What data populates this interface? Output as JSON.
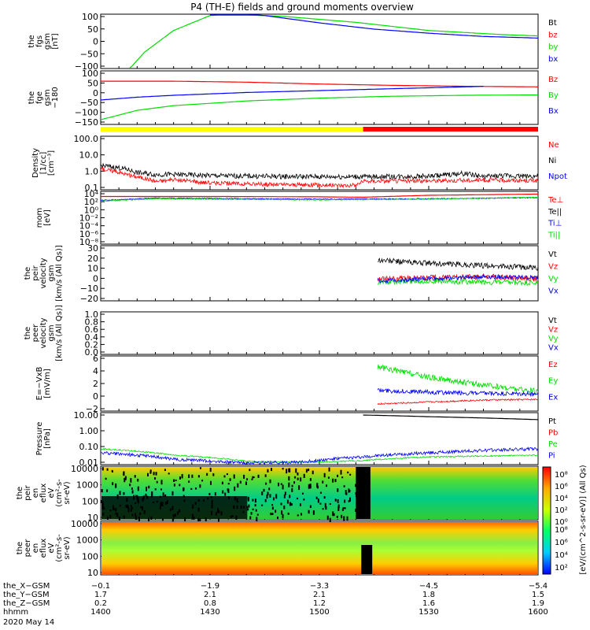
{
  "title": "P4 (TH-E) fields and ground moments overview",
  "colors": {
    "black": "#000000",
    "red": "#ff0000",
    "green": "#00dd00",
    "blue": "#0000ff",
    "yellow": "#ffff00"
  },
  "panels": [
    {
      "id": "fgs",
      "ylabel": [
        "the",
        "fgs",
        "gsm",
        "[nT]"
      ],
      "ticks": [
        "100",
        "50",
        "0",
        "−50",
        "−100"
      ],
      "ylim": [
        -100,
        100
      ],
      "legend": [
        {
          "text": "Bt",
          "color": "#000000"
        },
        {
          "text": "bz",
          "color": "#ff0000"
        },
        {
          "text": "by",
          "color": "#00dd00"
        },
        {
          "text": "bx",
          "color": "#0000ff"
        }
      ]
    },
    {
      "id": "fge",
      "ylabel": [
        "the",
        "fge",
        "gsm",
        "−180"
      ],
      "ticks": [
        "100",
        "50",
        "0",
        "−50",
        "−100",
        "−150"
      ],
      "ylim": [
        -175,
        110
      ],
      "legend": [
        {
          "text": "Bz",
          "color": "#ff0000"
        },
        {
          "text": "By",
          "color": "#00dd00"
        },
        {
          "text": "Bx",
          "color": "#0000ff"
        }
      ]
    },
    {
      "id": "density",
      "ylabel": [
        "Density",
        "[1/cc]",
        "[cm⁻³]"
      ],
      "ticks": [
        "100.0",
        "10.0",
        "1.0",
        "0.1"
      ],
      "ylim": [
        0.05,
        300
      ],
      "log": true,
      "legend": [
        {
          "text": "Ne",
          "color": "#ff0000"
        },
        {
          "text": "Ni",
          "color": "#000000"
        },
        {
          "text": "Npot",
          "color": "#0000ff"
        }
      ]
    },
    {
      "id": "temp",
      "ylabel": [
        "mom",
        "[eV]"
      ],
      "ticks": [
        "10⁴",
        "10²",
        "10⁰",
        "10⁻²",
        "10⁻⁴",
        "10⁻⁶",
        "10⁻⁸"
      ],
      "ylim": [
        -9,
        4.5
      ],
      "legend": [
        {
          "text": "Te⊥",
          "color": "#ff0000"
        },
        {
          "text": "Te||",
          "color": "#000000"
        },
        {
          "text": "Ti⊥",
          "color": "#0000ff"
        },
        {
          "text": "Ti||",
          "color": "#00dd00"
        }
      ]
    },
    {
      "id": "peir_vel",
      "ylabel": [
        "the",
        "peir",
        "velocity",
        "gsm",
        "[km/s (All Qs)]"
      ],
      "ticks": [
        "30",
        "20",
        "10",
        "0",
        "−10",
        "−20"
      ],
      "ylim": [
        -20,
        30
      ],
      "legend": [
        {
          "text": "Vt",
          "color": "#000000"
        },
        {
          "text": "Vz",
          "color": "#ff0000"
        },
        {
          "text": "Vy",
          "color": "#00dd00"
        },
        {
          "text": "Vx",
          "color": "#0000ff"
        }
      ]
    },
    {
      "id": "peer_vel",
      "ylabel": [
        "the",
        "peer",
        "velocity",
        "gsm",
        "[km/s (All Qs)]"
      ],
      "ticks": [
        "1.0",
        "0.8",
        "0.6",
        "0.4",
        "0.2",
        "0.0"
      ],
      "ylim": [
        0,
        1
      ],
      "legend": [
        {
          "text": "Vt",
          "color": "#000000"
        },
        {
          "text": "Vz",
          "color": "#ff0000"
        },
        {
          "text": "Vy",
          "color": "#00dd00"
        },
        {
          "text": "Vx",
          "color": "#0000ff"
        }
      ]
    },
    {
      "id": "efield",
      "ylabel": [
        "E=−VxB",
        "[mV/m]"
      ],
      "ticks": [
        "6",
        "4",
        "2",
        "0",
        "−2"
      ],
      "ylim": [
        -2,
        6.5
      ],
      "legend": [
        {
          "text": "Ez",
          "color": "#ff0000"
        },
        {
          "text": "Ey",
          "color": "#00dd00"
        },
        {
          "text": "Ex",
          "color": "#0000ff"
        }
      ]
    },
    {
      "id": "pressure",
      "ylabel": [
        "Pressure",
        "[nPa]"
      ],
      "ticks": [
        "10.00",
        "1.00",
        "0.10",
        "0.01"
      ],
      "ylim": [
        0.004,
        30
      ],
      "log": true,
      "legend": [
        {
          "text": "Pt",
          "color": "#000000"
        },
        {
          "text": "Pb",
          "color": "#ff0000"
        },
        {
          "text": "Pe",
          "color": "#00dd00"
        },
        {
          "text": "Pi",
          "color": "#0000ff"
        }
      ]
    },
    {
      "id": "peir_spec",
      "ylabel": [
        "the",
        "peir",
        "en",
        "eflux",
        "eV",
        "(cm²-s-",
        "sr-eV)"
      ],
      "ticks": [
        "10000",
        "1000",
        "100",
        "10"
      ]
    },
    {
      "id": "peer_spec",
      "ylabel": [
        "the",
        "peer",
        "en",
        "eflux",
        "eV",
        "(cm²-s-",
        "sr-eV)"
      ],
      "ticks": [
        "10000",
        "1000",
        "100",
        "10"
      ]
    }
  ],
  "colorbar": {
    "label": "[eV/(cm^2-s-sr-eV)] (All Qs)",
    "ticks_top": [
      "10⁸",
      "10⁶",
      "10⁴",
      "10²",
      "10⁰"
    ],
    "ticks_bottom": [
      "10⁸",
      "10⁶",
      "10⁴",
      "10²"
    ]
  },
  "mode_bar": {
    "segments": [
      {
        "from": 0,
        "to": 0.6,
        "color": "#ffff00"
      },
      {
        "from": 0.6,
        "to": 1,
        "color": "#ff0000"
      }
    ]
  },
  "xaxis": {
    "rows": [
      {
        "label": "the_X−GSM",
        "values": [
          "−0.1",
          "−1.9",
          "−3.3",
          "−4.5",
          "−5.4"
        ]
      },
      {
        "label": "the_Y−GSM",
        "values": [
          "1.7",
          "2.1",
          "2.1",
          "1.8",
          "1.5"
        ]
      },
      {
        "label": "the_Z−GSM",
        "values": [
          "0.2",
          "0.8",
          "1.2",
          "1.6",
          "1.9"
        ]
      },
      {
        "label": "hhmm",
        "values": [
          "1400",
          "1430",
          "1500",
          "1530",
          "1600"
        ]
      }
    ],
    "date": "2020 May 14"
  },
  "chart_data": {
    "type": "line",
    "title": "P4 (TH-E) fields and ground moments overview",
    "x_label": "hhmm",
    "x": [
      "1400",
      "1430",
      "1500",
      "1530",
      "1600"
    ],
    "x_minutes": [
      0,
      30,
      60,
      90,
      120
    ],
    "series": [
      {
        "panel": "fgs",
        "name": "by",
        "points": [
          [
            8,
            -100
          ],
          [
            12,
            -40
          ],
          [
            20,
            40
          ],
          [
            30,
            95
          ],
          [
            35,
            100
          ],
          [
            50,
            92
          ],
          [
            70,
            70
          ],
          [
            90,
            40
          ],
          [
            110,
            25
          ],
          [
            120,
            20
          ]
        ]
      },
      {
        "panel": "fgs",
        "name": "bx",
        "points": [
          [
            30,
            110
          ],
          [
            45,
            95
          ],
          [
            60,
            68
          ],
          [
            75,
            45
          ],
          [
            90,
            30
          ],
          [
            105,
            18
          ],
          [
            120,
            12
          ]
        ]
      },
      {
        "panel": "fge",
        "name": "Bz",
        "points": [
          [
            0,
            55
          ],
          [
            20,
            55
          ],
          [
            40,
            50
          ],
          [
            60,
            40
          ],
          [
            80,
            33
          ],
          [
            100,
            28
          ],
          [
            120,
            25
          ]
        ]
      },
      {
        "panel": "fge",
        "name": "By",
        "points": [
          [
            0,
            -150
          ],
          [
            10,
            -100
          ],
          [
            20,
            -75
          ],
          [
            40,
            -50
          ],
          [
            60,
            -35
          ],
          [
            80,
            -25
          ],
          [
            100,
            -20
          ],
          [
            120,
            -18
          ]
        ]
      },
      {
        "panel": "fge",
        "name": "Bx",
        "points": [
          [
            0,
            -45
          ],
          [
            10,
            -30
          ],
          [
            20,
            -20
          ],
          [
            40,
            -5
          ],
          [
            60,
            5
          ],
          [
            80,
            15
          ],
          [
            100,
            25
          ],
          [
            105,
            28
          ]
        ]
      },
      {
        "panel": "density",
        "name": "Ni",
        "points": [
          [
            0,
            2.5
          ],
          [
            5,
            1.8
          ],
          [
            10,
            0.8
          ],
          [
            15,
            0.6
          ],
          [
            20,
            0.6
          ],
          [
            30,
            0.5
          ],
          [
            45,
            0.45
          ],
          [
            60,
            0.42
          ],
          [
            75,
            0.42
          ],
          [
            90,
            0.45
          ],
          [
            100,
            0.7
          ],
          [
            105,
            0.4
          ],
          [
            110,
            0.5
          ],
          [
            120,
            0.45
          ]
        ]
      },
      {
        "panel": "density",
        "name": "Ne",
        "points": [
          [
            0,
            1.5
          ],
          [
            8,
            0.5
          ],
          [
            15,
            0.2
          ],
          [
            20,
            0.25
          ],
          [
            30,
            0.15
          ],
          [
            45,
            0.12
          ],
          [
            60,
            0.11
          ],
          [
            70,
            0.1
          ],
          [
            72,
            0.2
          ],
          [
            90,
            0.22
          ],
          [
            110,
            0.24
          ],
          [
            120,
            0.22
          ]
        ]
      },
      {
        "panel": "temp",
        "name": "Te⊥",
        "points": [
          [
            0,
            3.2
          ],
          [
            30,
            3.2
          ],
          [
            60,
            3.1
          ],
          [
            72,
            3.0
          ],
          [
            90,
            3.5
          ],
          [
            120,
            3.8
          ]
        ]
      },
      {
        "panel": "temp",
        "name": "Ti⊥",
        "points": [
          [
            0,
            2.2
          ],
          [
            15,
            2.8
          ],
          [
            30,
            2.7
          ],
          [
            60,
            2.5
          ],
          [
            90,
            2.6
          ],
          [
            120,
            2.9
          ]
        ]
      },
      {
        "panel": "temp",
        "name": "Ti||",
        "points": [
          [
            0,
            2.0
          ],
          [
            15,
            2.6
          ],
          [
            30,
            2.5
          ],
          [
            60,
            2.3
          ],
          [
            90,
            2.5
          ],
          [
            120,
            3.0
          ]
        ]
      },
      {
        "panel": "peir_vel",
        "name": "Vt",
        "points": [
          [
            76,
            17
          ],
          [
            90,
            14
          ],
          [
            105,
            12
          ],
          [
            120,
            10
          ]
        ]
      },
      {
        "panel": "peir_vel",
        "name": "Vz",
        "points": [
          [
            76,
            0
          ],
          [
            90,
            1
          ],
          [
            105,
            2
          ],
          [
            120,
            0
          ]
        ]
      },
      {
        "panel": "peir_vel",
        "name": "Vy",
        "points": [
          [
            76,
            -3
          ],
          [
            90,
            -2
          ],
          [
            105,
            -3
          ],
          [
            120,
            -4
          ]
        ]
      },
      {
        "panel": "peir_vel",
        "name": "Vx",
        "points": [
          [
            76,
            -2
          ],
          [
            90,
            0
          ],
          [
            105,
            2
          ],
          [
            120,
            1
          ]
        ]
      },
      {
        "panel": "efield",
        "name": "Ey",
        "points": [
          [
            76,
            4.8
          ],
          [
            90,
            3.2
          ],
          [
            105,
            2.0
          ],
          [
            120,
            1.0
          ]
        ]
      },
      {
        "panel": "efield",
        "name": "Ex",
        "points": [
          [
            76,
            1.2
          ],
          [
            90,
            0.9
          ],
          [
            105,
            0.7
          ],
          [
            120,
            0.6
          ]
        ]
      },
      {
        "panel": "efield",
        "name": "Ez",
        "points": [
          [
            76,
            -0.9
          ],
          [
            90,
            -0.6
          ],
          [
            105,
            -0.3
          ],
          [
            120,
            -0.2
          ]
        ]
      },
      {
        "panel": "pressure",
        "name": "Pt",
        "points": [
          [
            72,
            20
          ],
          [
            90,
            15
          ],
          [
            120,
            9
          ]
        ]
      },
      {
        "panel": "pressure",
        "name": "Pe",
        "points": [
          [
            0,
            0.06
          ],
          [
            20,
            0.02
          ],
          [
            40,
            0.007
          ],
          [
            60,
            0.006
          ],
          [
            72,
            0.008
          ],
          [
            90,
            0.015
          ],
          [
            120,
            0.02
          ]
        ]
      },
      {
        "panel": "pressure",
        "name": "Pi",
        "points": [
          [
            0,
            0.03
          ],
          [
            20,
            0.01
          ],
          [
            40,
            0.005
          ],
          [
            55,
            0.006
          ],
          [
            72,
            0.015
          ],
          [
            90,
            0.03
          ],
          [
            120,
            0.06
          ]
        ]
      }
    ]
  }
}
